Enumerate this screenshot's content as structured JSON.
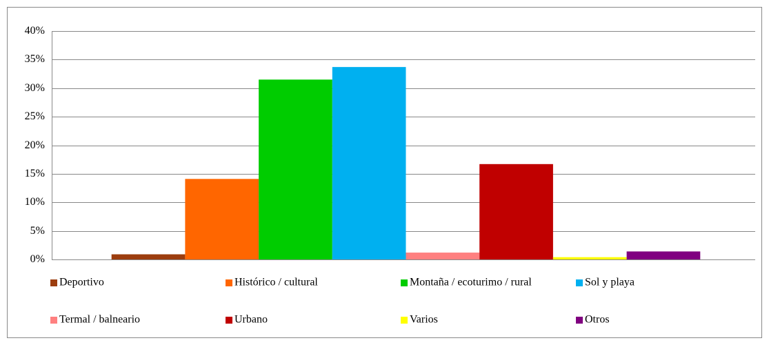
{
  "chart_data": {
    "type": "bar",
    "series": [
      {
        "name": "Deportivo",
        "color": "#9c3d0e",
        "values": [
          0.9
        ]
      },
      {
        "name": "Histórico / cultural",
        "color": "#ff6600",
        "values": [
          14.1
        ]
      },
      {
        "name": "Montaña / ecoturimo / rural",
        "color": "#00cc00",
        "values": [
          31.5
        ]
      },
      {
        "name": "Sol y playa",
        "color": "#00b0f0",
        "values": [
          33.7
        ]
      },
      {
        "name": "Termal / balneario",
        "color": "#ff8080",
        "values": [
          1.2
        ]
      },
      {
        "name": "Urbano",
        "color": "#c00000",
        "values": [
          16.7
        ]
      },
      {
        "name": "Varios",
        "color": "#ffff00",
        "values": [
          0.4
        ]
      },
      {
        "name": "Otros",
        "color": "#800080",
        "values": [
          1.4
        ]
      }
    ],
    "ylim": [
      0,
      40
    ],
    "yticks": [
      {
        "value": 0,
        "label": "0%"
      },
      {
        "value": 5,
        "label": "5%"
      },
      {
        "value": 10,
        "label": "10%"
      },
      {
        "value": 15,
        "label": "15%"
      },
      {
        "value": 20,
        "label": "20%"
      },
      {
        "value": 25,
        "label": "25%"
      },
      {
        "value": 30,
        "label": "30%"
      },
      {
        "value": 35,
        "label": "35%"
      },
      {
        "value": 40,
        "label": "40%"
      }
    ],
    "grid": true,
    "legend": "bottom"
  }
}
